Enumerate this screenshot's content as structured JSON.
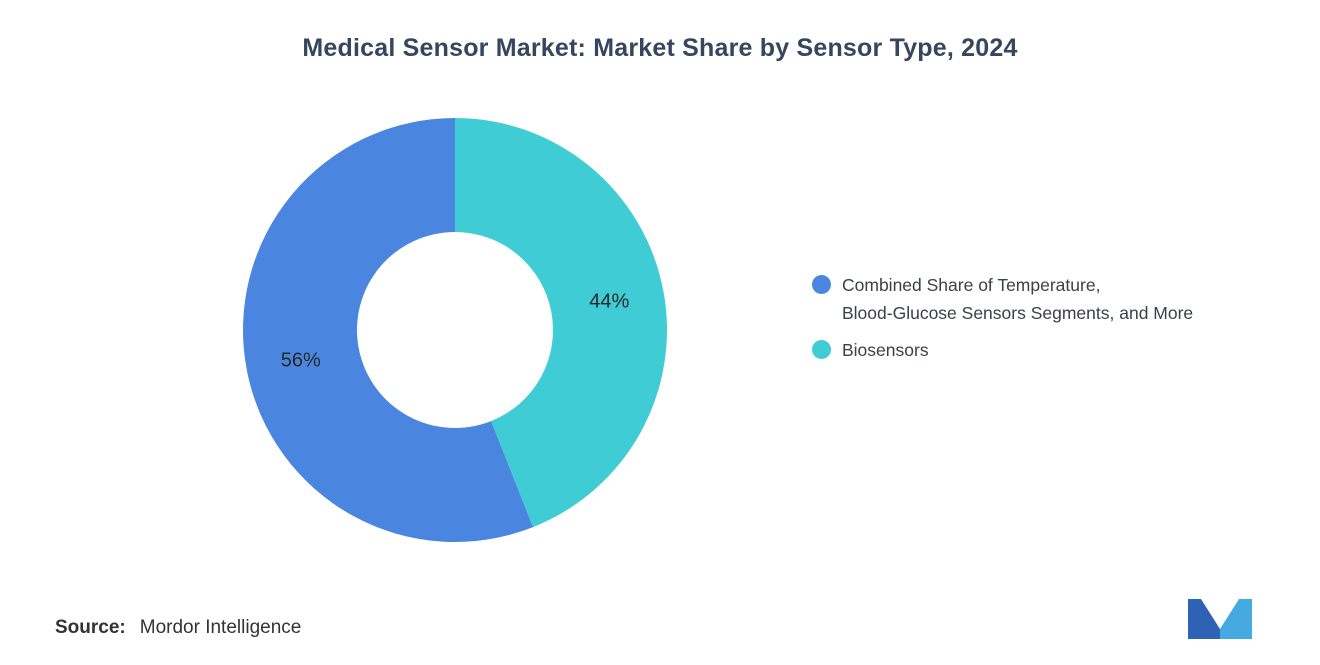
{
  "title": "Medical Sensor Market: Market Share by Sensor Type, 2024",
  "source": {
    "label": "Source:",
    "value": "Mordor Intelligence"
  },
  "logo": {
    "name": "mordor-intelligence-logo",
    "color_dark": "#2e62b4",
    "color_light": "#45aadf"
  },
  "chart_data": {
    "type": "pie",
    "donut": true,
    "title": "Medical Sensor Market: Market Share by Sensor Type, 2024",
    "start_angle_deg": 0,
    "direction": "clockwise",
    "inner_radius_ratio": 0.46,
    "slices": [
      {
        "label": "Biosensors",
        "value": 44,
        "data_label": "44%",
        "color": "#40ccd4"
      },
      {
        "label": "Combined Share of Temperature, Blood-Glucose Sensors Segments, and More",
        "value": 56,
        "data_label": "56%",
        "color": "#4a86e0"
      }
    ],
    "legend_position": "right",
    "legend": [
      {
        "color": "#4a86e0",
        "lines": [
          "Combined Share of Temperature,",
          "Blood-Glucose Sensors Segments, and More"
        ]
      },
      {
        "color": "#40ccd4",
        "lines": [
          "Biosensors"
        ]
      }
    ]
  }
}
